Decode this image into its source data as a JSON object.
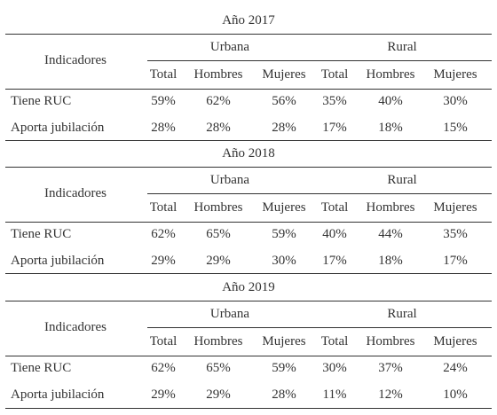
{
  "table": {
    "blocks": [
      {
        "year_label": "Año 2017",
        "indicator_header": "Indicadores",
        "group_labels": [
          "Urbana",
          "Rural"
        ],
        "column_labels": [
          "Total",
          "Hombres",
          "Mujeres",
          "Total",
          "Hombres",
          "Mujeres"
        ],
        "rows": [
          {
            "label": "Tiene RUC",
            "values": [
              "59%",
              "62%",
              "56%",
              "35%",
              "40%",
              "30%"
            ]
          },
          {
            "label": "Aporta jubilación",
            "values": [
              "28%",
              "28%",
              "28%",
              "17%",
              "18%",
              "15%"
            ]
          }
        ]
      },
      {
        "year_label": "Año 2018",
        "indicator_header": "Indicadores",
        "group_labels": [
          "Urbana",
          "Rural"
        ],
        "column_labels": [
          "Total",
          "Hombres",
          "Mujeres",
          "Total",
          "Hombres",
          "Mujeres"
        ],
        "rows": [
          {
            "label": "Tiene RUC",
            "values": [
              "62%",
              "65%",
              "59%",
              "40%",
              "44%",
              "35%"
            ]
          },
          {
            "label": "Aporta jubilación",
            "values": [
              "29%",
              "29%",
              "30%",
              "17%",
              "18%",
              "17%"
            ]
          }
        ]
      },
      {
        "year_label": "Año 2019",
        "indicator_header": "Indicadores",
        "group_labels": [
          "Urbana",
          "Rural"
        ],
        "column_labels": [
          "Total",
          "Hombres",
          "Mujeres",
          "Total",
          "Hombres",
          "Mujeres"
        ],
        "rows": [
          {
            "label": "Tiene RUC",
            "values": [
              "62%",
              "65%",
              "59%",
              "30%",
              "37%",
              "24%"
            ]
          },
          {
            "label": "Aporta jubilación",
            "values": [
              "29%",
              "29%",
              "28%",
              "11%",
              "12%",
              "10%"
            ]
          }
        ]
      }
    ]
  }
}
